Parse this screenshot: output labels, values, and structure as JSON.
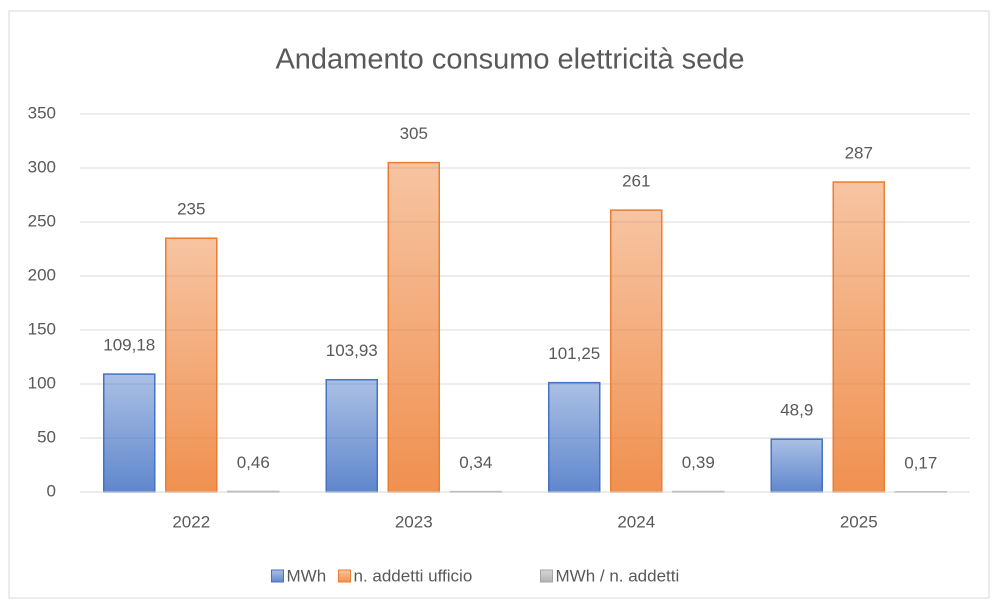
{
  "chart_data": {
    "type": "bar",
    "title": "Andamento consumo elettricità sede",
    "categories": [
      "2022",
      "2023",
      "2024",
      "2025"
    ],
    "series": [
      {
        "name": "MWh",
        "color": "#4472c4",
        "values": [
          109.18,
          103.93,
          101.25,
          48.9
        ],
        "value_labels": [
          "109,18",
          "103,93",
          "101,25",
          "48,9"
        ]
      },
      {
        "name": "n. addetti ufficio",
        "color": "#ed7d31",
        "values": [
          235,
          305,
          261,
          287
        ]
      },
      {
        "name": "MWh / n. addetti",
        "color": "#a5a5a5",
        "values": [
          0.46,
          0.34,
          0.39,
          0.17
        ],
        "value_labels": [
          "0,46",
          "0,34",
          "0,39",
          "0,17"
        ]
      }
    ],
    "ylim": [
      0,
      350
    ],
    "yticks": [
      0,
      50,
      100,
      150,
      200,
      250,
      300,
      350
    ],
    "grid": true,
    "legend": "bottom"
  }
}
